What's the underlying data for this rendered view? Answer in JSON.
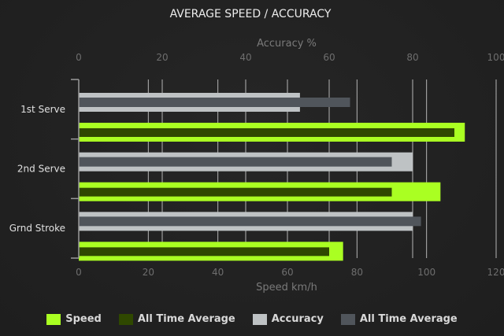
{
  "chart_data": {
    "type": "bar",
    "orientation": "horizontal",
    "title": "AVERAGE SPEED / ACCURACY",
    "categories": [
      "1st Serve",
      "2nd Serve",
      "Grnd Stroke"
    ],
    "x_axis_bottom": {
      "label": "Speed km/h",
      "range": [
        0,
        120
      ],
      "ticks": [
        0,
        20,
        40,
        60,
        80,
        100,
        120
      ]
    },
    "x_axis_top": {
      "label": "Accuracy %",
      "range": [
        0,
        100
      ],
      "ticks": [
        0,
        20,
        40,
        60,
        80,
        100
      ]
    },
    "grid": true,
    "legend_placement": "bottom",
    "series": [
      {
        "name": "Speed",
        "axis": "bottom",
        "color": "#aaff22",
        "values": [
          111,
          104,
          76
        ]
      },
      {
        "name": "All Time Average",
        "axis": "bottom",
        "color": "#2f4800",
        "values": [
          108,
          90,
          72
        ]
      },
      {
        "name": "Accuracy",
        "axis": "top",
        "color": "#bec2c4",
        "values": [
          53,
          80,
          80
        ]
      },
      {
        "name": "All Time Average",
        "axis": "top",
        "color": "#50555b",
        "values": [
          65,
          75,
          82
        ]
      }
    ]
  }
}
